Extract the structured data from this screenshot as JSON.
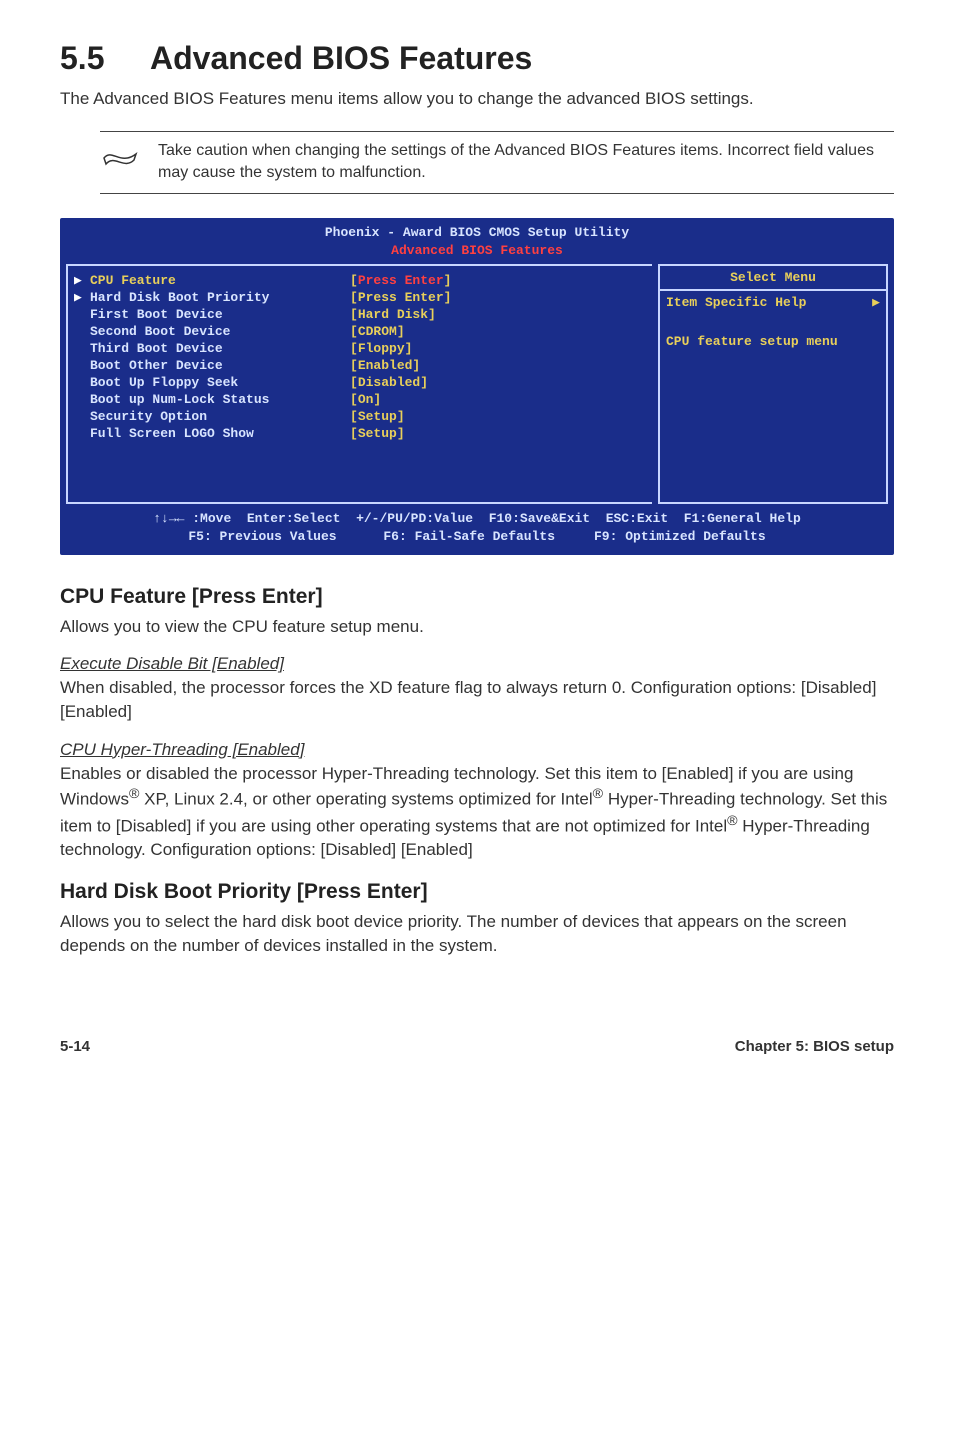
{
  "section": {
    "number": "5.5",
    "title": "Advanced BIOS Features",
    "intro": "The Advanced BIOS Features menu items allow you to change the advanced BIOS settings."
  },
  "note": {
    "text": "Take caution when changing the settings of the Advanced BIOS Features items. Incorrect field values may cause the system to malfunction."
  },
  "bios": {
    "header_line1": "Phoenix - Award BIOS CMOS Setup Utility",
    "header_line2": "Advanced BIOS Features",
    "select_menu": "Select Menu",
    "help_line1_left": "Item Specific Help",
    "help_line2": "CPU feature setup menu",
    "rows": [
      {
        "tri": true,
        "label": "CPU Feature",
        "value": "Press Enter",
        "highlight": true
      },
      {
        "tri": true,
        "label": "Hard Disk Boot Priority",
        "value": "Press Enter"
      },
      {
        "label": "First Boot Device",
        "value": "Hard Disk"
      },
      {
        "label": "Second Boot Device",
        "value": "CDROM"
      },
      {
        "label": "Third Boot Device",
        "value": "Floppy"
      },
      {
        "label": "Boot Other Device",
        "value": "Enabled"
      },
      {
        "label": "Boot Up Floppy Seek",
        "value": "Disabled"
      },
      {
        "label": "Boot up Num-Lock Status",
        "value": "On"
      },
      {
        "label": "Security Option",
        "value": "Setup"
      },
      {
        "label": "Full Screen LOGO Show",
        "value": "Setup"
      }
    ],
    "footer_line1": "↑↓→← :Move  Enter:Select  +/-/PU/PD:Value  F10:Save&Exit  ESC:Exit  F1:General Help",
    "footer_line2": "F5: Previous Values      F6: Fail-Safe Defaults     F9: Optimized Defaults"
  },
  "cpu_feature": {
    "heading": "CPU Feature [Press Enter]",
    "desc": "Allows you to view the CPU feature setup menu.",
    "item1_title": "Execute Disable Bit [Enabled]",
    "item1_body": "When disabled, the processor forces the XD feature flag to always return 0. Configuration options: [Disabled] [Enabled]",
    "item2_title": "CPU Hyper-Threading [Enabled]",
    "item2_body_a": "Enables or disabled the processor Hyper-Threading technology. Set this item to [Enabled] if you are using Windows",
    "item2_body_b": " XP, Linux 2.4, or other operating systems optimized for Intel",
    "item2_body_c": " Hyper-Threading technology. Set this item to [Disabled] if you are using other operating systems that are not optimized for Intel",
    "item2_body_d": " Hyper-Threading technology. Configuration options: [Disabled] [Enabled]"
  },
  "hdd_priority": {
    "heading": "Hard Disk Boot Priority [Press Enter]",
    "desc": "Allows you to select the hard disk boot device priority. The number of devices that appears on the screen depends on the number of devices installed in the system."
  },
  "footer": {
    "left": "5-14",
    "right": "Chapter 5: BIOS setup"
  }
}
